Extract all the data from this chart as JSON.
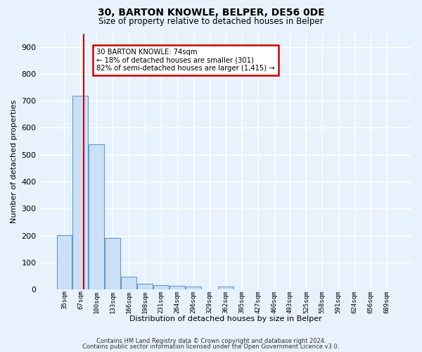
{
  "title1": "30, BARTON KNOWLE, BELPER, DE56 0DE",
  "title2": "Size of property relative to detached houses in Belper",
  "xlabel": "Distribution of detached houses by size in Belper",
  "ylabel": "Number of detached properties",
  "categories": [
    "35sqm",
    "67sqm",
    "100sqm",
    "133sqm",
    "166sqm",
    "198sqm",
    "231sqm",
    "264sqm",
    "296sqm",
    "329sqm",
    "362sqm",
    "395sqm",
    "427sqm",
    "460sqm",
    "493sqm",
    "525sqm",
    "558sqm",
    "591sqm",
    "624sqm",
    "656sqm",
    "689sqm"
  ],
  "bar_values": [
    202,
    720,
    538,
    192,
    48,
    22,
    15,
    13,
    10,
    0,
    11,
    0,
    0,
    0,
    0,
    0,
    0,
    0,
    0,
    0,
    0
  ],
  "bar_color": "#cce0f5",
  "bar_edge_color": "#5b9bd5",
  "background_color": "#e8f2fc",
  "grid_color": "#ffffff",
  "annotation_line1": "30 BARTON KNOWLE: 74sqm",
  "annotation_line2": "← 18% of detached houses are smaller (301)",
  "annotation_line3": "82% of semi-detached houses are larger (1,415) →",
  "annotation_box_color": "#ffffff",
  "annotation_box_edge": "#cc0000",
  "ylim": [
    0,
    950
  ],
  "yticks": [
    0,
    100,
    200,
    300,
    400,
    500,
    600,
    700,
    800,
    900
  ],
  "footer1": "Contains HM Land Registry data © Crown copyright and database right 2024.",
  "footer2": "Contains public sector information licensed under the Open Government Licence v3.0."
}
